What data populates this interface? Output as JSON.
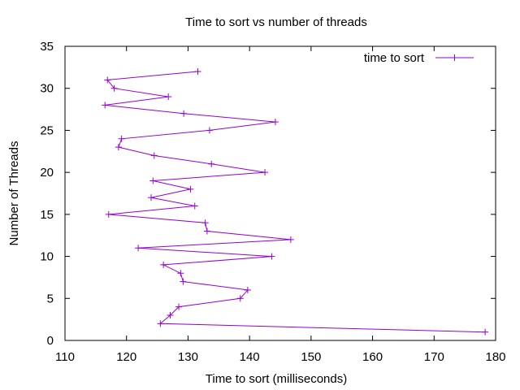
{
  "chart_data": {
    "type": "line",
    "title": "Time to sort vs number of threads",
    "xlabel": "Time to sort (milliseconds)",
    "ylabel": "Number of Threads",
    "xlim": [
      110,
      180
    ],
    "ylim": [
      0,
      35
    ],
    "xticks": [
      110,
      120,
      130,
      140,
      150,
      160,
      170,
      180
    ],
    "yticks": [
      0,
      5,
      10,
      15,
      20,
      25,
      30,
      35
    ],
    "grid": false,
    "legend_position": "top-right",
    "series": [
      {
        "name": "time to sort",
        "color": "#9400d3",
        "marker": "plus",
        "points": [
          {
            "x": 178.3,
            "y": 1
          },
          {
            "x": 125.5,
            "y": 2
          },
          {
            "x": 127.1,
            "y": 3
          },
          {
            "x": 128.5,
            "y": 4
          },
          {
            "x": 138.5,
            "y": 5
          },
          {
            "x": 139.7,
            "y": 6
          },
          {
            "x": 129.2,
            "y": 7
          },
          {
            "x": 128.8,
            "y": 8
          },
          {
            "x": 126.0,
            "y": 9
          },
          {
            "x": 143.6,
            "y": 10
          },
          {
            "x": 121.9,
            "y": 11
          },
          {
            "x": 146.7,
            "y": 12
          },
          {
            "x": 133.1,
            "y": 13
          },
          {
            "x": 132.8,
            "y": 14
          },
          {
            "x": 117.1,
            "y": 15
          },
          {
            "x": 131.1,
            "y": 16
          },
          {
            "x": 124.0,
            "y": 17
          },
          {
            "x": 130.4,
            "y": 18
          },
          {
            "x": 124.3,
            "y": 19
          },
          {
            "x": 142.5,
            "y": 20
          },
          {
            "x": 133.8,
            "y": 21
          },
          {
            "x": 124.5,
            "y": 22
          },
          {
            "x": 118.7,
            "y": 23
          },
          {
            "x": 119.2,
            "y": 24
          },
          {
            "x": 133.5,
            "y": 25
          },
          {
            "x": 144.2,
            "y": 26
          },
          {
            "x": 129.3,
            "y": 27
          },
          {
            "x": 116.5,
            "y": 28
          },
          {
            "x": 126.8,
            "y": 29
          },
          {
            "x": 118.0,
            "y": 30
          },
          {
            "x": 116.9,
            "y": 31
          },
          {
            "x": 131.6,
            "y": 32
          }
        ]
      }
    ]
  }
}
